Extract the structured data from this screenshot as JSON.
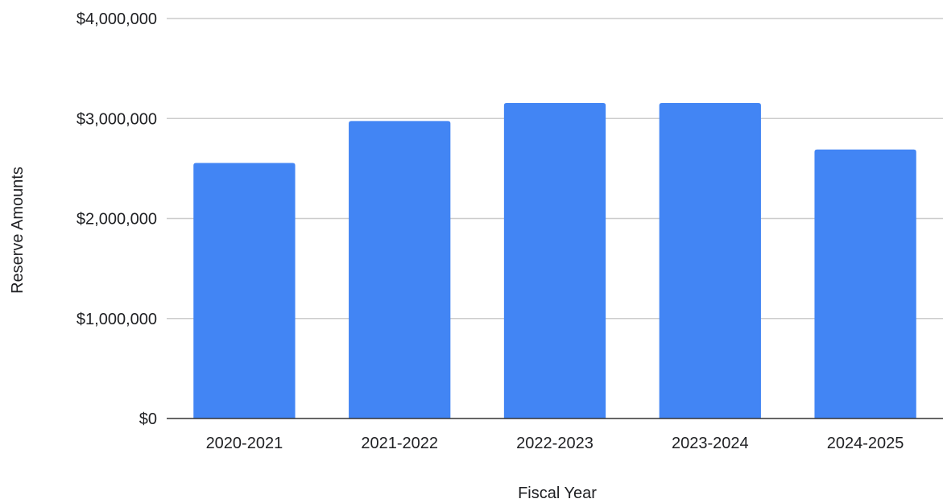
{
  "chart_data": {
    "type": "bar",
    "title": "",
    "xlabel": "Fiscal Year",
    "ylabel": "Reserve Amounts",
    "categories": [
      "2020-2021",
      "2021-2022",
      "2022-2023",
      "2023-2024",
      "2024-2025"
    ],
    "series": [
      {
        "values": [
          2555000,
          2975000,
          3155000,
          3155000,
          2690000
        ],
        "color": "#4285f4"
      }
    ],
    "ylim": [
      0,
      4000000
    ],
    "yticks": [
      0,
      1000000,
      2000000,
      3000000,
      4000000
    ],
    "ytick_labels": [
      "$0",
      "$1,000,000",
      "$2,000,000",
      "$3,000,000",
      "$4,000,000"
    ],
    "grid": true,
    "legend": "none"
  }
}
